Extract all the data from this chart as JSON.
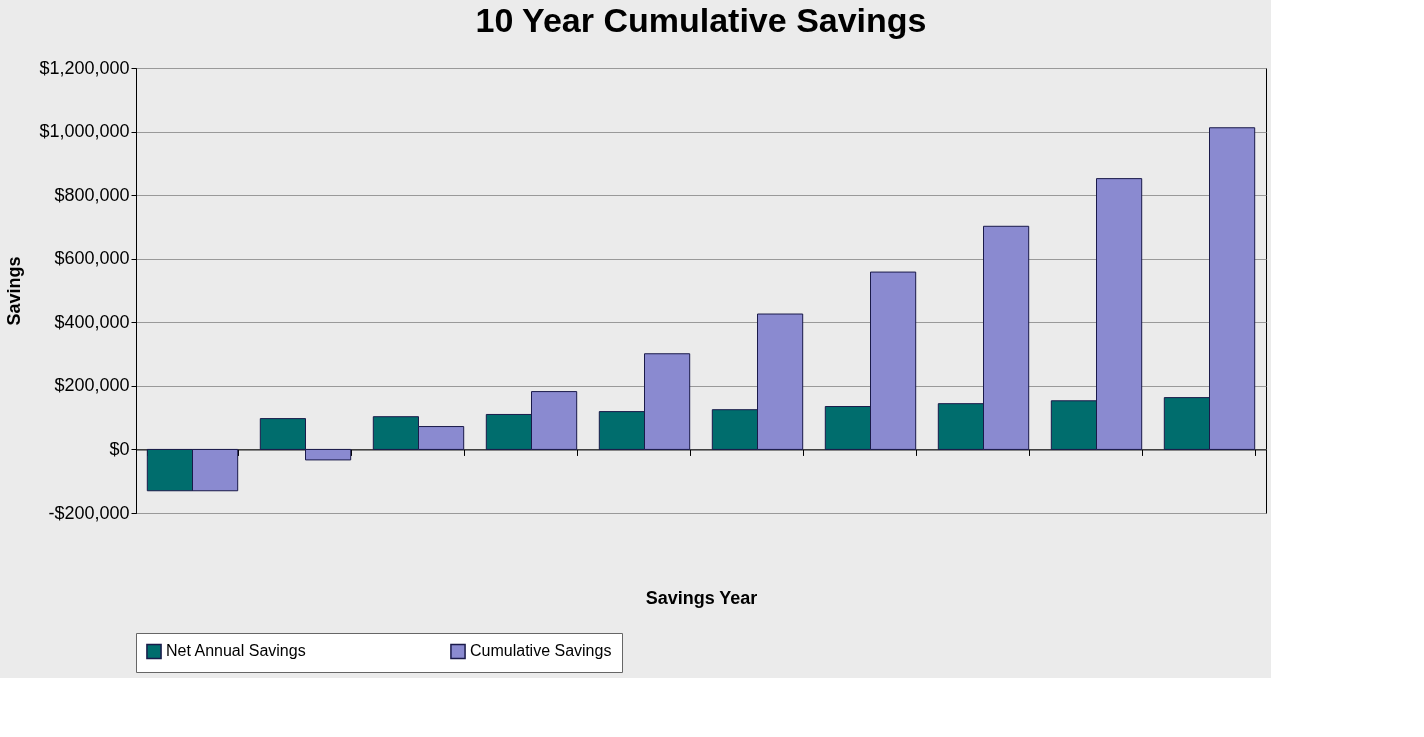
{
  "chart_data": {
    "type": "bar",
    "title": "10 Year Cumulative Savings",
    "xlabel": "Savings Year",
    "ylabel": "Savings",
    "categories": [
      null,
      null,
      null,
      null,
      null,
      null,
      null,
      null,
      null,
      null
    ],
    "series": [
      {
        "name": "Net Annual Savings",
        "color": "#006d6d",
        "values": [
          -130000,
          97000,
          103000,
          110000,
          119000,
          125000,
          135000,
          144000,
          153000,
          163000
        ]
      },
      {
        "name": "Cumulative Savings",
        "color": "#8a8ad0",
        "values": [
          -130000,
          -33000,
          72000,
          182000,
          301000,
          426000,
          558000,
          702000,
          852000,
          1012000
        ]
      }
    ],
    "ylim": [
      -200000,
      1200000
    ],
    "yticks": [
      {
        "value": -200000,
        "label": "-$200,000"
      },
      {
        "value": 0,
        "label": "$0"
      },
      {
        "value": 200000,
        "label": "$200,000"
      },
      {
        "value": 400000,
        "label": "$400,000"
      },
      {
        "value": 600000,
        "label": "$600,000"
      },
      {
        "value": 800000,
        "label": "$800,000"
      },
      {
        "value": 1000000,
        "label": "$1,000,000"
      },
      {
        "value": 1200000,
        "label": "$1,200,000"
      }
    ],
    "grid": "y",
    "legend": "bottom",
    "tick_labels": "y"
  }
}
